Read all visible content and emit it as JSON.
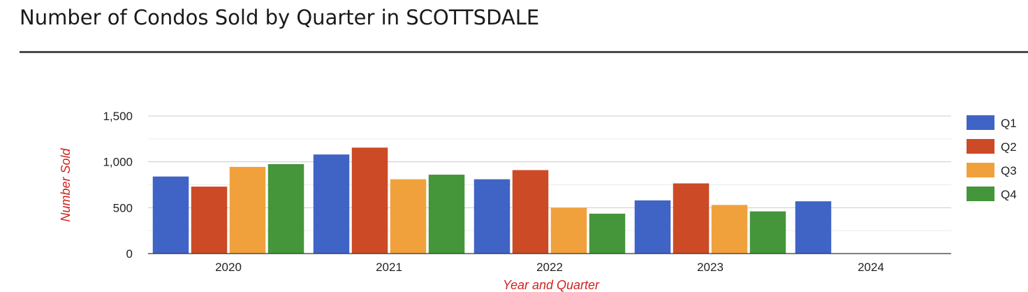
{
  "page": {
    "title": "Number of Condos Sold by Quarter in SCOTTSDALE"
  },
  "chart_data": {
    "type": "bar",
    "categories": [
      "2020",
      "2021",
      "2022",
      "2023",
      "2024"
    ],
    "series": [
      {
        "name": "Q1",
        "color": "#3f64c6",
        "values": [
          840,
          1080,
          810,
          580,
          570
        ]
      },
      {
        "name": "Q2",
        "color": "#cc4a26",
        "values": [
          730,
          1155,
          910,
          765,
          null
        ]
      },
      {
        "name": "Q3",
        "color": "#f0a13c",
        "values": [
          945,
          810,
          500,
          530,
          null
        ]
      },
      {
        "name": "Q4",
        "color": "#45963a",
        "values": [
          975,
          860,
          435,
          460,
          null
        ]
      }
    ],
    "xlabel": "Year and Quarter",
    "ylabel": "Number Sold",
    "ylim": [
      0,
      1500
    ],
    "yticks": [
      {
        "value": 0,
        "label": "0"
      },
      {
        "value": 500,
        "label": "500"
      },
      {
        "value": 1000,
        "label": "1,000"
      },
      {
        "value": 1500,
        "label": "1,500"
      }
    ],
    "minor_gridlines": [
      250,
      750,
      1250
    ],
    "axis_label_color": "#d0231f",
    "grid": true,
    "legend_position": "right"
  }
}
